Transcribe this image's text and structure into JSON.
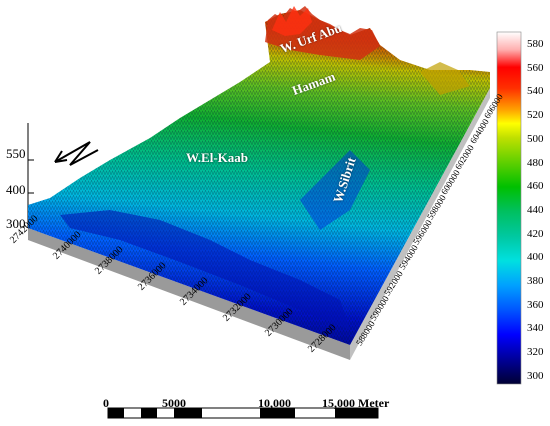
{
  "wadi_labels": {
    "urf_abu_hamam_line1": "W. Urf Abu",
    "urf_abu_hamam_line2": "Hamam",
    "el_kaab": "W.El-Kaab",
    "sibrit": "W.Sibrit"
  },
  "z_axis": {
    "ticks": [
      "550",
      "400",
      "300"
    ]
  },
  "northing_ticks": [
    "2742000",
    "2740000",
    "2738000",
    "2736000",
    "2734000",
    "2732000",
    "2730000",
    "2728000"
  ],
  "easting_ticks": [
    "588000",
    "590000",
    "592000",
    "594000",
    "596000",
    "598000",
    "600000",
    "602000",
    "604000",
    "606000"
  ],
  "colorbar": {
    "ticks": [
      "580",
      "560",
      "540",
      "520",
      "500",
      "480",
      "460",
      "440",
      "420",
      "400",
      "380",
      "360",
      "340",
      "320",
      "300"
    ],
    "colors": [
      "#000033",
      "#000099",
      "#0000ff",
      "#0055ff",
      "#00a0ff",
      "#00e0e0",
      "#00c8a0",
      "#00c060",
      "#00c000",
      "#60d000",
      "#c0e000",
      "#ffff00",
      "#ffa000",
      "#ff3000",
      "#ff0000",
      "#ffb0b0",
      "#ffffff"
    ]
  },
  "scale_bar": {
    "labels": [
      "0",
      "5000",
      "10,000",
      "15,000 Meter"
    ]
  }
}
